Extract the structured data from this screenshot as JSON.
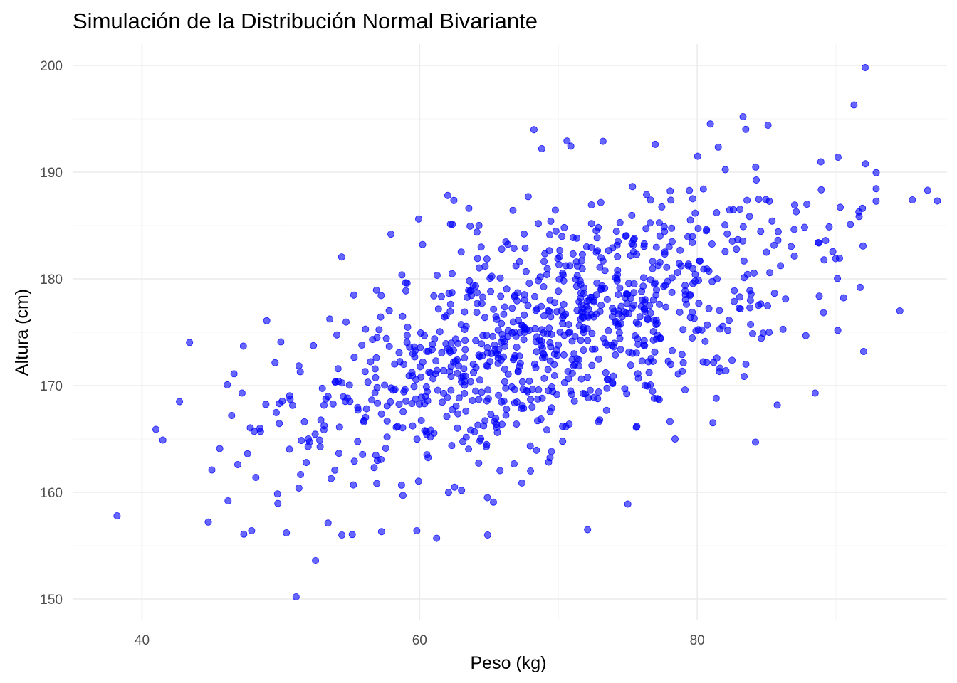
{
  "chart_data": {
    "type": "scatter",
    "title": "Simulación de la Distribución Normal Bivariante",
    "xlabel": "Peso (kg)",
    "ylabel": "Altura (cm)",
    "xlim": [
      35,
      98
    ],
    "ylim": [
      148,
      202
    ],
    "x_ticks": [
      40,
      60,
      80
    ],
    "y_ticks": [
      150,
      160,
      170,
      180,
      190,
      200
    ],
    "x_tick_labels": [
      "40",
      "60",
      "80"
    ],
    "y_tick_labels": [
      "150",
      "160",
      "170",
      "180",
      "190",
      "200"
    ],
    "grid": true,
    "legend": "none",
    "point_color": "#0000ff",
    "point_opacity": 0.6,
    "outlier_points": {
      "x": [
        38.2,
        41.0,
        41.5,
        42.7,
        45.6,
        46.2,
        46.9,
        47.3,
        47.9,
        48.2,
        48.5,
        50.0,
        50.4,
        51.1,
        51.4,
        52.5,
        52.8,
        54.4,
        59.8,
        64.9,
        68.8,
        72.1,
        75.0,
        78.4,
        84.2,
        88.5,
        91.3,
        92.0,
        92.1,
        94.6,
        95.5,
        96.6,
        97.3,
        83.3,
        85.1
      ],
      "y": [
        157.8,
        165.9,
        164.9,
        168.5,
        164.1,
        159.2,
        162.6,
        173.7,
        156.4,
        161.4,
        166.0,
        174.1,
        156.2,
        150.2,
        171.3,
        153.6,
        164.9,
        156.0,
        156.4,
        156.0,
        192.2,
        156.5,
        158.9,
        165.0,
        164.7,
        169.3,
        196.3,
        173.2,
        199.8,
        177.0,
        187.4,
        188.3,
        187.3,
        195.2,
        194.4
      ]
    },
    "cloud_points": {
      "count": 965,
      "seed": 20240519,
      "x_mean": 70.0,
      "x_sd": 10.0,
      "y_mean": 175.0,
      "y_sd": 7.0,
      "correlation": 0.6
    }
  }
}
